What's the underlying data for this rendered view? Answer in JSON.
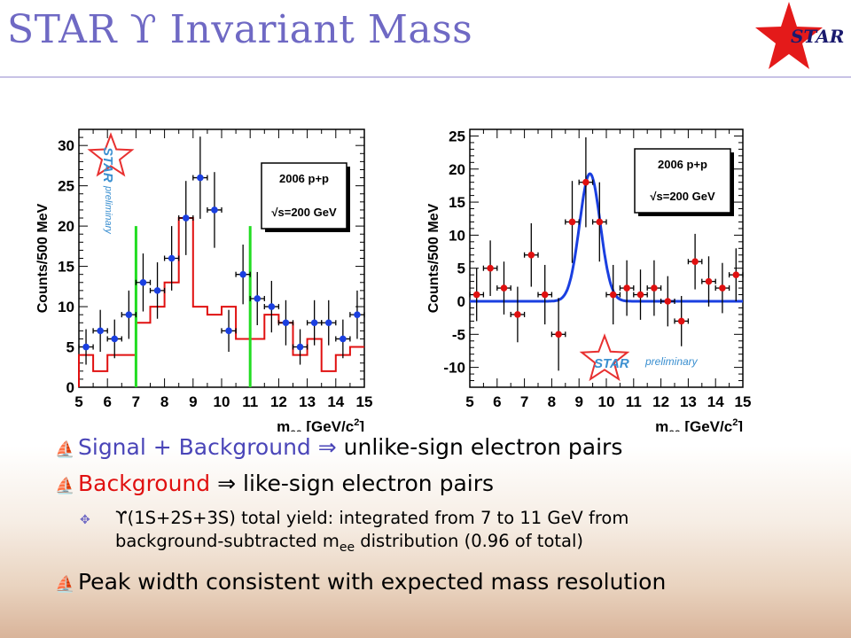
{
  "slide": {
    "title": "STAR ϒ Invariant Mass",
    "logo_text": "STAR",
    "accent": "#6f69c4",
    "bullets": [
      {
        "arrow": "⇒",
        "a": "Signal + Background",
        "b": "unlike-sign electron pairs",
        "color": "#4a45b8"
      },
      {
        "arrow": "⇒",
        "a": "Background",
        "b": "like-sign electron pairs",
        "color": "#e01010"
      }
    ],
    "sub_bullet": {
      "line1_a": "ϒ(1S+2S+3S) total yield: integrated from 7 to 11 GeV from",
      "line2_a": "background-subtracted m",
      "line2_sub": "ee",
      "line2_b": " distribution (0.96 of total)"
    },
    "bullet3": "Peak width consistent with expected mass resolution"
  },
  "chart_data": [
    {
      "type": "scatter",
      "ylabel": "Counts/500 MeV",
      "xlabel": "m",
      "xlabel_sub": "ee",
      "xlabel_unit": "[GeV/c",
      "xlabel_sup": "2",
      "xlabel_end": "]",
      "xlim": [
        5,
        15
      ],
      "ylim": [
        0,
        32
      ],
      "xticks": [
        "5",
        "6",
        "7",
        "8",
        "9",
        "10",
        "11",
        "12",
        "13",
        "14",
        "15"
      ],
      "yticks": [
        "0",
        "5",
        "10",
        "15",
        "20",
        "25",
        "30"
      ],
      "legend_lines": [
        "2006 p+p",
        "√s=200 GeV"
      ],
      "watermark": [
        "STAR",
        "preliminary"
      ],
      "signal_background": {
        "x": [
          5.25,
          5.75,
          6.25,
          6.75,
          7.25,
          7.75,
          8.25,
          8.75,
          9.25,
          9.75,
          10.25,
          10.75,
          11.25,
          11.75,
          12.25,
          12.75,
          13.25,
          13.75,
          14.25,
          14.75
        ],
        "y": [
          5,
          7,
          6,
          9,
          13,
          12,
          16,
          21,
          26,
          22,
          7,
          14,
          11,
          10,
          8,
          5,
          8,
          8,
          6,
          9
        ],
        "err": [
          2.2,
          2.6,
          2.4,
          3,
          3.6,
          3.5,
          4,
          4.6,
          5.1,
          4.7,
          2.6,
          3.7,
          3.3,
          3.2,
          2.8,
          2.2,
          2.8,
          2.8,
          2.4,
          3
        ]
      },
      "background_step": {
        "edges": [
          5,
          5.5,
          6,
          6.5,
          7,
          7.5,
          8,
          8.5,
          9,
          9.5,
          10,
          10.5,
          11,
          11.5,
          12,
          12.5,
          13,
          13.5,
          14,
          14.5,
          15
        ],
        "values": [
          4,
          2,
          4,
          4,
          8,
          10,
          13,
          21,
          10,
          9,
          10,
          6,
          6,
          9,
          8,
          4,
          6,
          2,
          4,
          5
        ]
      },
      "integration_lines_x": [
        7,
        11
      ]
    },
    {
      "type": "scatter",
      "ylabel": "Counts/500 MeV",
      "xlabel": "m",
      "xlabel_sub": "ee",
      "xlabel_unit": "[GeV/c",
      "xlabel_sup": "2",
      "xlabel_end": "]",
      "xlim": [
        5,
        15
      ],
      "ylim": [
        -13,
        26
      ],
      "xticks": [
        "5",
        "6",
        "7",
        "8",
        "9",
        "10",
        "11",
        "12",
        "13",
        "14",
        "15"
      ],
      "yticks": [
        "-10",
        "-5",
        "0",
        "5",
        "10",
        "15",
        "20",
        "25"
      ],
      "legend_lines": [
        "2006 p+p",
        "√s=200 GeV"
      ],
      "watermark": [
        "STAR",
        "preliminary"
      ],
      "subtracted": {
        "x": [
          5.25,
          5.75,
          6.25,
          6.75,
          7.25,
          7.75,
          8.25,
          8.75,
          9.25,
          9.75,
          10.25,
          10.75,
          11.25,
          11.75,
          12.25,
          12.75,
          13.25,
          13.75,
          14.25,
          14.75
        ],
        "y": [
          1,
          5,
          2,
          -2,
          7,
          1,
          -5,
          12,
          18,
          12,
          1,
          2,
          1,
          2,
          0,
          -3,
          6,
          3,
          2,
          4
        ],
        "err": [
          4,
          4.2,
          4,
          4.2,
          4.8,
          4.5,
          5.5,
          6.2,
          6.8,
          6,
          4.5,
          4.2,
          3.8,
          4.2,
          3.8,
          3.8,
          4.2,
          3.8,
          3.8,
          4
        ]
      },
      "fit": {
        "shape": "gaussian",
        "mean": 9.4,
        "amplitude": 19.3,
        "sigma": 0.38,
        "baseline": 0
      }
    }
  ]
}
